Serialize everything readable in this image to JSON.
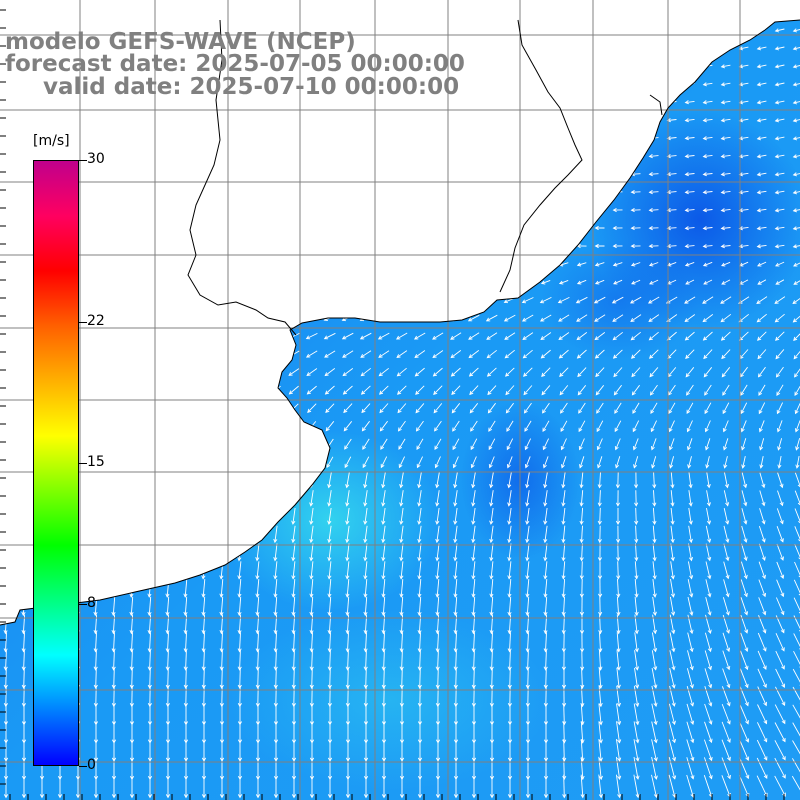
{
  "title": {
    "line1": "modelo GEFS-WAVE (NCEP)",
    "line2": "forecast date: 2025-07-05 00:00:00",
    "line3": "valid date: 2025-07-10 00:00:00"
  },
  "colorbar": {
    "unit": "[m/s]",
    "min": 0,
    "max": 30,
    "ticks": [
      "30",
      "22",
      "15",
      "8",
      "0"
    ],
    "tick_values": [
      30,
      22,
      15,
      8,
      0
    ],
    "colors": [
      "#0000ff",
      "#0080ff",
      "#00ffff",
      "#00ff80",
      "#00ff00",
      "#80ff00",
      "#ffff00",
      "#ffb000",
      "#ff6000",
      "#ff0000",
      "#ff0060",
      "#c0008c"
    ]
  },
  "map": {
    "variable": "wind speed and direction",
    "grid_color": "#808080",
    "coast_color": "#000000",
    "arrow_color": "#ffffff",
    "typical_speed_range_ms": [
      2,
      7
    ]
  }
}
